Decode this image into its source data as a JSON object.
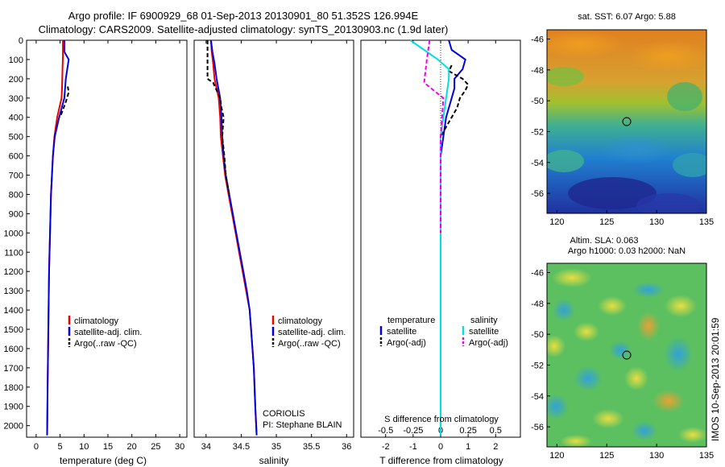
{
  "header": {
    "line1": "Argo profile: IF 6900929_68 01-Sep-2013 20130901_80 51.352S 126.994E",
    "line2": "Climatology: CARS2009. Satellite-adjusted climatology: synTS_20130903.nc (1.9d later)"
  },
  "side_text": "IMOS 10-Sep-2013 20:01:59",
  "colors": {
    "climatology": "#ee0000",
    "satellite": "#0000dd",
    "argo": "#000000",
    "salinity_satellite": "#00e0e0",
    "salinity_argo": "#ee00ee"
  },
  "chart_data": [
    {
      "type": "line",
      "id": "temperature",
      "xlabel": "temperature (deg C)",
      "ylabel": "",
      "xlim": [
        -2,
        31.5
      ],
      "ylim": [
        2060,
        0
      ],
      "xticks": [
        "0",
        "5",
        "10",
        "15",
        "20",
        "25",
        "30"
      ],
      "yticks": [
        "0",
        "100",
        "200",
        "300",
        "400",
        "500",
        "600",
        "700",
        "800",
        "900",
        "1000",
        "1100",
        "1200",
        "1300",
        "1400",
        "1500",
        "1600",
        "1700",
        "1800",
        "1900",
        "2000"
      ],
      "legend": [
        "climatology",
        "satellite-adj. clim.",
        "Argo(..raw -QC)"
      ],
      "series": [
        {
          "name": "climatology",
          "color": "#ee0000",
          "depth": [
            0,
            80,
            150,
            250,
            300,
            400,
            500,
            600,
            700,
            800,
            1000,
            1200,
            1400,
            1600,
            1800,
            2050
          ],
          "values": [
            5.6,
            5.6,
            5.5,
            5.4,
            5.3,
            4.4,
            3.8,
            3.5,
            3.3,
            3.1,
            2.9,
            2.7,
            2.6,
            2.5,
            2.4,
            2.3
          ]
        },
        {
          "name": "satellite-adj. clim.",
          "color": "#0000dd",
          "depth": [
            0,
            60,
            100,
            150,
            200,
            300,
            400,
            500,
            600,
            700,
            800,
            1000,
            1200,
            1400,
            1600,
            1800,
            2050
          ],
          "values": [
            5.9,
            5.9,
            6.8,
            6.5,
            6.2,
            5.9,
            4.8,
            3.9,
            3.5,
            3.3,
            3.1,
            2.9,
            2.7,
            2.6,
            2.5,
            2.4,
            2.3
          ]
        },
        {
          "name": "Argo(..raw -QC)",
          "color": "#000000",
          "depth": [
            240,
            270,
            320,
            400
          ],
          "values": [
            6.6,
            6.8,
            6.2,
            5.0
          ]
        }
      ]
    },
    {
      "type": "line",
      "id": "salinity",
      "xlabel": "salinity",
      "xlim": [
        33.83,
        36.1
      ],
      "ylim": [
        2060,
        0
      ],
      "xticks": [
        "34",
        "34.5",
        "35",
        "35.5",
        "36"
      ],
      "legend": [
        "climatology",
        "satellite-adj. clim.",
        "Argo(..raw -QC)"
      ],
      "annotation": [
        "CORIOLIS",
        "PI: Stephane BLAIN"
      ],
      "series": [
        {
          "name": "climatology",
          "color": "#ee0000",
          "depth": [
            0,
            60,
            120,
            200,
            300,
            400,
            500,
            600,
            700,
            800,
            900,
            1000,
            1100,
            1200,
            1300,
            1400,
            1500,
            1600,
            1700,
            1800,
            1900,
            2050
          ],
          "values": [
            34.07,
            34.08,
            34.1,
            34.12,
            34.18,
            34.2,
            34.21,
            34.24,
            34.27,
            34.32,
            34.37,
            34.42,
            34.47,
            34.52,
            34.57,
            34.62,
            34.64,
            34.66,
            34.68,
            34.69,
            34.7,
            34.72
          ]
        },
        {
          "name": "satellite-adj. clim.",
          "color": "#0000dd",
          "depth": [
            0,
            60,
            120,
            200,
            300,
            400,
            500,
            600,
            700,
            800,
            900,
            1000,
            1100,
            1200,
            1300,
            1400,
            1500,
            1600,
            1700,
            1800,
            1900,
            2050
          ],
          "values": [
            34.07,
            34.09,
            34.12,
            34.15,
            34.2,
            34.22,
            34.23,
            34.25,
            34.28,
            34.33,
            34.38,
            34.43,
            34.48,
            34.53,
            34.58,
            34.62,
            34.64,
            34.66,
            34.68,
            34.69,
            34.7,
            34.72
          ]
        },
        {
          "name": "Argo(..raw -QC)",
          "color": "#000000",
          "depth": [
            0,
            100,
            200,
            220,
            260,
            300,
            350,
            400,
            500,
            600,
            700,
            800
          ],
          "values": [
            34.02,
            34.02,
            34.02,
            34.1,
            34.15,
            34.2,
            34.22,
            34.25,
            34.23,
            34.26,
            34.28,
            34.33
          ]
        }
      ]
    },
    {
      "type": "line",
      "id": "difference",
      "xlabel": "T difference from climatology",
      "xlabel_top": "S difference from climatology",
      "xlim": [
        -2.9,
        2.9
      ],
      "ylim": [
        2060,
        0
      ],
      "xticks": [
        "-2",
        "-1",
        "0",
        "1",
        "2"
      ],
      "xticks_top": [
        "-0.5",
        "-0.25",
        "0",
        "0.25",
        "0.5"
      ],
      "legend_headers": [
        "temperature",
        "salinity"
      ],
      "legend": [
        "satellite",
        "Argo(-adj)",
        "satellite",
        "Argo(-adj)"
      ],
      "series": [
        {
          "name": "satellite",
          "color": "#0000dd",
          "depth": [
            0,
            50,
            100,
            150,
            200,
            250,
            300,
            400,
            600,
            800,
            1000,
            2050
          ],
          "values": [
            0.3,
            0.4,
            0.9,
            0.8,
            0.5,
            0.5,
            0.4,
            0.2,
            0.0,
            0.0,
            0.0,
            0.0
          ]
        },
        {
          "name": "Argo(-adj)",
          "color": "#000000",
          "depth": [
            130,
            160,
            200,
            230,
            260,
            300,
            350,
            400,
            450,
            500
          ],
          "values": [
            0.4,
            0.3,
            0.8,
            1.0,
            0.9,
            0.7,
            0.6,
            0.4,
            0.2,
            0.0
          ]
        },
        {
          "name": "satellite",
          "color": "#00e0e0",
          "depth": [
            0,
            50,
            100,
            150,
            200,
            300,
            400,
            500,
            600,
            800,
            1000,
            2050
          ],
          "values": [
            -1.1,
            -0.6,
            -0.1,
            0.3,
            0.3,
            0.2,
            0.1,
            0.0,
            0.0,
            0.0,
            0.0,
            0.0
          ]
        },
        {
          "name": "Argo(-adj)",
          "color": "#ee00ee",
          "depth": [
            0,
            100,
            220,
            300,
            500,
            800,
            1000
          ],
          "values": [
            -0.4,
            -0.5,
            -0.6,
            0.1,
            0.0,
            0.0,
            0.0
          ]
        }
      ]
    },
    {
      "type": "heatmap",
      "id": "sst-map",
      "title": "sat. SST: 6.07 Argo: 5.88",
      "xlim": [
        119,
        135
      ],
      "ylim": [
        -57.3,
        -45.4
      ],
      "xticks": [
        "120",
        "125",
        "130",
        "135"
      ],
      "yticks": [
        "-46",
        "-48",
        "-50",
        "-52",
        "-54",
        "-56"
      ],
      "marker": {
        "lon": 127.0,
        "lat": -51.35
      }
    },
    {
      "type": "heatmap",
      "id": "sla-map",
      "title_lines": [
        "Altim. SLA: 0.063",
        "Argo h1000: 0.03 h2000: NaN"
      ],
      "xlim": [
        119,
        135
      ],
      "ylim": [
        -57.3,
        -45.4
      ],
      "xticks": [
        "120",
        "125",
        "130",
        "135"
      ],
      "yticks": [
        "-46",
        "-48",
        "-50",
        "-52",
        "-54",
        "-56"
      ],
      "marker": {
        "lon": 127.0,
        "lat": -51.35
      }
    }
  ]
}
